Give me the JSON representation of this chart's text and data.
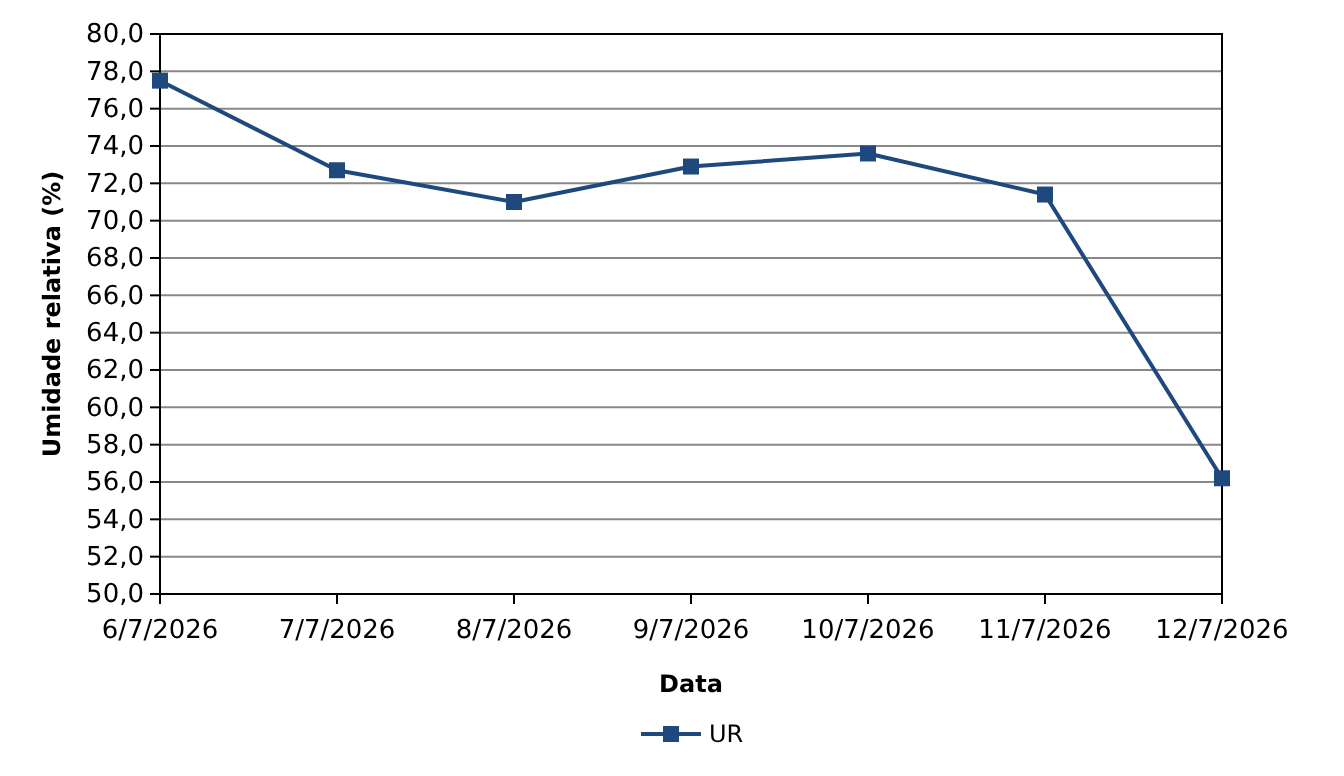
{
  "chart_data": {
    "type": "line",
    "xlabel": "Data",
    "ylabel": "Umidade relativa (%)",
    "categories": [
      "6/7/2026",
      "7/7/2026",
      "8/7/2026",
      "9/7/2026",
      "10/7/2026",
      "11/7/2026",
      "12/7/2026"
    ],
    "series": [
      {
        "name": "UR",
        "color": "#1f497d",
        "values": [
          77.5,
          72.7,
          71.0,
          72.9,
          73.6,
          71.4,
          56.2
        ]
      }
    ],
    "ylim": [
      50,
      80
    ],
    "yticks": [
      {
        "value": 50,
        "label": "50,0"
      },
      {
        "value": 52,
        "label": "52,0"
      },
      {
        "value": 54,
        "label": "54,0"
      },
      {
        "value": 56,
        "label": "56,0"
      },
      {
        "value": 58,
        "label": "58,0"
      },
      {
        "value": 60,
        "label": "60,0"
      },
      {
        "value": 62,
        "label": "62,0"
      },
      {
        "value": 64,
        "label": "64,0"
      },
      {
        "value": 66,
        "label": "66,0"
      },
      {
        "value": 68,
        "label": "68,0"
      },
      {
        "value": 70,
        "label": "70,0"
      },
      {
        "value": 72,
        "label": "72,0"
      },
      {
        "value": 74,
        "label": "74,0"
      },
      {
        "value": 76,
        "label": "76,0"
      },
      {
        "value": 78,
        "label": "78,0"
      },
      {
        "value": 80,
        "label": "80,0"
      }
    ],
    "grid": "y",
    "legend": "bottom",
    "marker": "square",
    "line_style": "solid"
  }
}
